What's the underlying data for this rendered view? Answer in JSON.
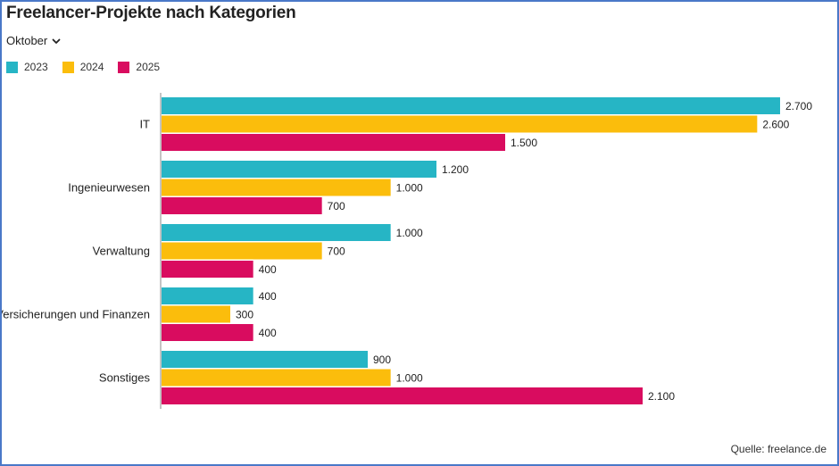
{
  "title": "Freelancer-Projekte nach Kategorien",
  "filter": {
    "selected": "Oktober",
    "icon": "chevron-down-icon"
  },
  "source": "Quelle: freelance.de",
  "colors": {
    "2023": "#26b5c5",
    "2024": "#fbbd0c",
    "2025": "#d90c5f",
    "axis": "#888888"
  },
  "chart_data": {
    "type": "bar",
    "orientation": "horizontal",
    "categories": [
      "IT",
      "Ingenieurwesen",
      "Verwaltung",
      "Versicherungen und Finanzen",
      "Sonstiges"
    ],
    "series": [
      {
        "name": "2023",
        "values": [
          2700,
          1200,
          1000,
          400,
          900
        ],
        "labels": [
          "2.700",
          "1.200",
          "1.000",
          "400",
          "900"
        ]
      },
      {
        "name": "2024",
        "values": [
          2600,
          1000,
          700,
          300,
          1000
        ],
        "labels": [
          "2.600",
          "1.000",
          "700",
          "300",
          "1.000"
        ]
      },
      {
        "name": "2025",
        "values": [
          1500,
          700,
          400,
          400,
          2100
        ],
        "labels": [
          "1.500",
          "700",
          "400",
          "400",
          "2.100"
        ]
      }
    ],
    "xlim": [
      0,
      2700
    ],
    "legend_position": "top-left",
    "grid": false
  }
}
